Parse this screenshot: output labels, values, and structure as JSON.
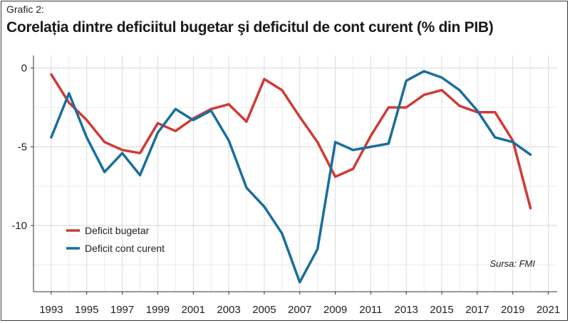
{
  "header": {
    "label": "Grafic 2:",
    "title": "Corelația dintre deficiitul bugetar şi deficitul de cont curent (% din PIB)"
  },
  "source": "Sursa: FMI",
  "colors": {
    "deficit_bugetar": "#d03a34",
    "deficit_cont_curent": "#1a6e9c"
  },
  "chart_data": {
    "type": "line",
    "title": "Corelația dintre deficiitul bugetar şi deficitul de cont curent (% din PIB)",
    "xlabel": "",
    "ylabel": "",
    "x": [
      1993,
      1994,
      1995,
      1996,
      1997,
      1998,
      1999,
      2000,
      2001,
      2002,
      2003,
      2004,
      2005,
      2006,
      2007,
      2008,
      2009,
      2010,
      2011,
      2012,
      2013,
      2014,
      2015,
      2016,
      2017,
      2018,
      2019,
      2020
    ],
    "xlim": [
      1992,
      2021.5
    ],
    "ylim": [
      -14.2,
      0.8
    ],
    "x_ticks": [
      1993,
      1995,
      1997,
      1999,
      2001,
      2003,
      2005,
      2007,
      2009,
      2011,
      2013,
      2015,
      2017,
      2019,
      2021
    ],
    "y_ticks": [
      0,
      -5,
      -10
    ],
    "grid": true,
    "legend_position": "bottom-left",
    "series": [
      {
        "name": "Deficit bugetar",
        "values": [
          -0.4,
          -2.2,
          -3.3,
          -4.7,
          -5.2,
          -5.4,
          -3.5,
          -4.0,
          -3.2,
          -2.6,
          -2.3,
          -3.4,
          -0.7,
          -1.4,
          -3.1,
          -4.7,
          -6.9,
          -6.4,
          -4.3,
          -2.5,
          -2.5,
          -1.7,
          -1.4,
          -2.4,
          -2.8,
          -2.8,
          -4.6,
          -8.9
        ]
      },
      {
        "name": "Deficit cont curent",
        "values": [
          -4.4,
          -1.6,
          -4.4,
          -6.6,
          -5.4,
          -6.8,
          -4.1,
          -2.6,
          -3.3,
          -2.7,
          -4.6,
          -7.6,
          -8.8,
          -10.5,
          -13.6,
          -11.5,
          -4.7,
          -5.2,
          -5.0,
          -4.8,
          -0.8,
          -0.2,
          -0.6,
          -1.4,
          -2.7,
          -4.4,
          -4.7,
          -5.5
        ]
      }
    ]
  }
}
